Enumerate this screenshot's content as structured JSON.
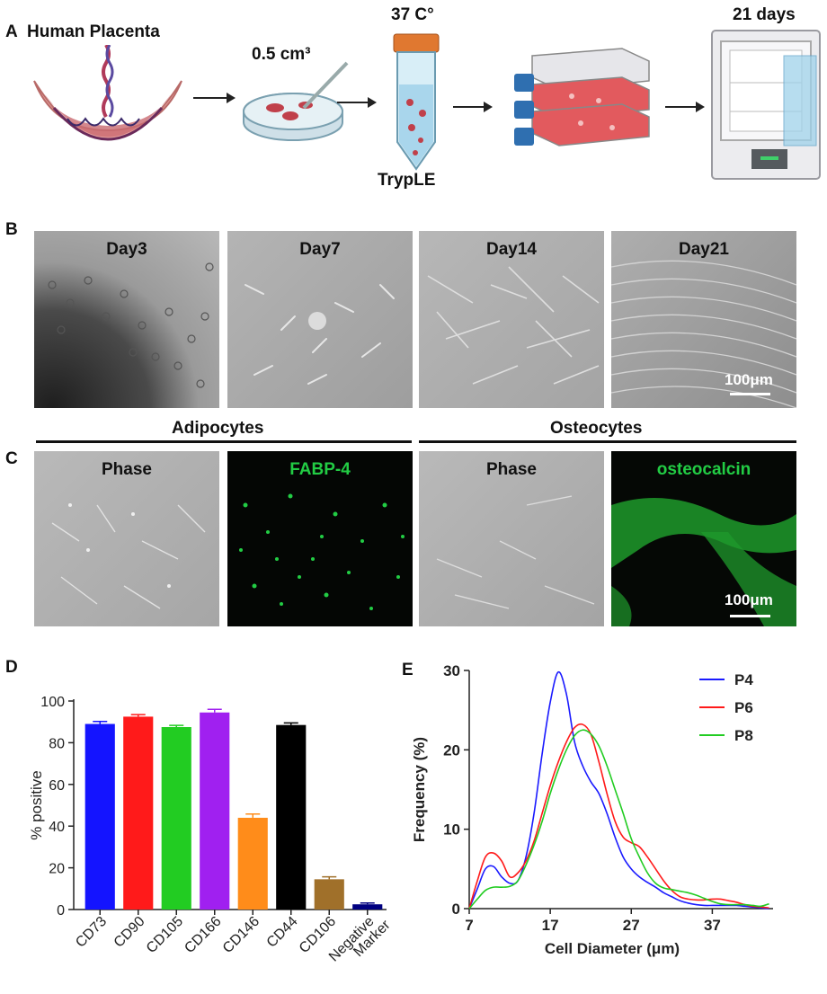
{
  "panel_a": {
    "letter": "A",
    "placenta_label": "Human Placenta",
    "dish_label": "0.5 cm³",
    "tube_top_label": "37 C°",
    "tube_bottom_label": "TrypLE",
    "incubator_label": "21 days"
  },
  "panel_b": {
    "letter": "B",
    "images": [
      {
        "caption": "Day3"
      },
      {
        "caption": "Day7"
      },
      {
        "caption": "Day14"
      },
      {
        "caption": "Day21"
      }
    ],
    "scale_text": "100μm"
  },
  "panel_c": {
    "letter": "C",
    "group_left": "Adipocytes",
    "group_right": "Osteocytes",
    "images": [
      {
        "caption": "Phase"
      },
      {
        "caption": "FABP-4"
      },
      {
        "caption": "Phase"
      },
      {
        "caption": "osteocalcin"
      }
    ],
    "scale_text": "100μm",
    "colors": {
      "fluor_green": "#22cc44"
    }
  },
  "panel_d": {
    "letter": "D",
    "chart_data": {
      "type": "bar",
      "title": "",
      "xlabel": "",
      "ylabel": "% positive",
      "ylim": [
        0,
        100
      ],
      "yticks": [
        0,
        20,
        40,
        60,
        80,
        100
      ],
      "categories": [
        "CD73",
        "CD90",
        "CD105",
        "CD166",
        "CD146",
        "CD44",
        "CD106",
        "Negative Marker"
      ],
      "tick_labels": [
        [
          "CD73"
        ],
        [
          "CD90"
        ],
        [
          "CD105"
        ],
        [
          "CD166"
        ],
        [
          "CD146"
        ],
        [
          "CD44"
        ],
        [
          "CD106"
        ],
        [
          "Negative",
          "Marker"
        ]
      ],
      "values": [
        89,
        92.5,
        87.5,
        94.5,
        44,
        88.5,
        14.5,
        2.5
      ],
      "errors": [
        1.2,
        1.0,
        0.8,
        1.5,
        1.8,
        1.0,
        1.2,
        0.6
      ],
      "colors": [
        "#1414ff",
        "#ff1a1a",
        "#22cc22",
        "#a020f0",
        "#ff8c1a",
        "#000000",
        "#a0702a",
        "#000080"
      ]
    }
  },
  "panel_e": {
    "letter": "E",
    "chart_data": {
      "type": "line",
      "title": "",
      "xlabel": "Cell Diameter (μm)",
      "ylabel": "Frequency (%)",
      "xlim": [
        7,
        44.5
      ],
      "ylim": [
        0,
        30
      ],
      "xticks": [
        7,
        17,
        27,
        37
      ],
      "yticks": [
        0,
        10,
        20,
        30
      ],
      "legend_position": "top-right",
      "series": [
        {
          "name": "P4",
          "color": "#1a1aff",
          "x": [
            7,
            8,
            9,
            10,
            11,
            12,
            13,
            14,
            15,
            16,
            17,
            18,
            19,
            20,
            21,
            22,
            23,
            24,
            25,
            26,
            27,
            28,
            29,
            30,
            31,
            32,
            33,
            34,
            35,
            36,
            37,
            38,
            39,
            40,
            41,
            42,
            43,
            44
          ],
          "y": [
            0,
            2.5,
            5.0,
            5.3,
            4.0,
            3.2,
            3.5,
            6.5,
            12.0,
            19.5,
            26.0,
            29.8,
            27.0,
            21.0,
            18.0,
            16.0,
            14.5,
            12.0,
            9.0,
            6.5,
            5.0,
            4.0,
            3.3,
            2.7,
            2.0,
            1.5,
            1.0,
            0.7,
            0.5,
            0.4,
            0.4,
            0.4,
            0.4,
            0.4,
            0.3,
            0.2,
            0.1,
            0
          ]
        },
        {
          "name": "P6",
          "color": "#ff1a1a",
          "x": [
            7,
            8,
            9,
            10,
            11,
            12,
            13,
            14,
            15,
            16,
            17,
            18,
            19,
            20,
            21,
            22,
            23,
            24,
            25,
            26,
            27,
            28,
            29,
            30,
            31,
            32,
            33,
            34,
            35,
            36,
            37,
            38,
            39,
            40,
            41,
            42,
            43,
            44
          ],
          "y": [
            0,
            3.5,
            6.5,
            7.0,
            6.0,
            4.0,
            4.5,
            6.0,
            8.5,
            12.0,
            15.5,
            18.5,
            21.0,
            22.8,
            23.2,
            22.0,
            18.5,
            14.5,
            11.0,
            9.0,
            8.3,
            7.8,
            6.5,
            5.0,
            3.5,
            2.3,
            1.5,
            1.2,
            1.1,
            1.1,
            1.2,
            1.2,
            1.0,
            0.8,
            0.5,
            0.3,
            0.2,
            0.1
          ]
        },
        {
          "name": "P8",
          "color": "#22cc22",
          "x": [
            7,
            8,
            9,
            10,
            11,
            12,
            13,
            14,
            15,
            16,
            17,
            18,
            19,
            20,
            21,
            22,
            23,
            24,
            25,
            26,
            27,
            28,
            29,
            30,
            31,
            32,
            33,
            34,
            35,
            36,
            37,
            38,
            39,
            40,
            41,
            42,
            43,
            44
          ],
          "y": [
            0,
            1.2,
            2.3,
            2.7,
            2.7,
            2.8,
            3.5,
            5.5,
            8.0,
            11.0,
            14.5,
            17.5,
            20.0,
            21.8,
            22.5,
            22.0,
            20.5,
            18.0,
            15.0,
            12.0,
            8.8,
            6.5,
            4.5,
            3.2,
            2.6,
            2.4,
            2.2,
            2.0,
            1.7,
            1.3,
            0.9,
            0.6,
            0.5,
            0.5,
            0.5,
            0.4,
            0.3,
            0.6
          ]
        }
      ]
    }
  }
}
